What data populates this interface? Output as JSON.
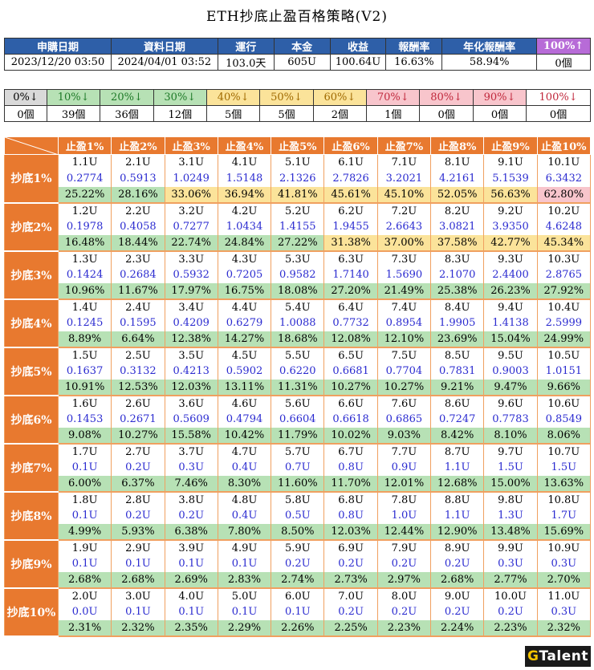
{
  "title": "ETH抄底止盈百格策略(V2)",
  "summary": {
    "headers": [
      "申購日期",
      "資料日期",
      "運行",
      "本金",
      "收益",
      "報酬率",
      "年化報酬率",
      "100%↑"
    ],
    "values": [
      "2023/12/20 03:50",
      "2024/04/01 03:52",
      "103.0天",
      "605U",
      "100.64U",
      "16.63%",
      "58.94%",
      "0個"
    ]
  },
  "distribution": {
    "labels": [
      "0%↓",
      "10%↓",
      "20%↓",
      "30%↓",
      "40%↓",
      "50%↓",
      "60%↓",
      "70%↓",
      "80%↓",
      "90%↓",
      "100%↓"
    ],
    "counts": [
      "0個",
      "39個",
      "36個",
      "12個",
      "5個",
      "5個",
      "2個",
      "1個",
      "0個",
      "0個",
      "0個"
    ],
    "colors": [
      "grey",
      "green",
      "green",
      "green",
      "yellow",
      "yellow",
      "yellow",
      "pink",
      "pink",
      "pink",
      "white"
    ]
  },
  "grid": {
    "col_headers": [
      "止盈1%",
      "止盈2%",
      "止盈3%",
      "止盈4%",
      "止盈5%",
      "止盈6%",
      "止盈7%",
      "止盈8%",
      "止盈9%",
      "止盈10%"
    ],
    "rows": [
      {
        "label": "抄底1%",
        "amounts": [
          "1.1U",
          "2.1U",
          "3.1U",
          "4.1U",
          "5.1U",
          "6.1U",
          "7.1U",
          "8.1U",
          "9.1U",
          "10.1U"
        ],
        "profits": [
          "0.2774",
          "0.5913",
          "1.0249",
          "1.5148",
          "2.1326",
          "2.7826",
          "3.2021",
          "4.2161",
          "5.1539",
          "6.3432"
        ],
        "returns": [
          "25.22%",
          "28.16%",
          "33.06%",
          "36.94%",
          "41.81%",
          "45.61%",
          "45.10%",
          "52.05%",
          "56.63%",
          "62.80%"
        ]
      },
      {
        "label": "抄底2%",
        "amounts": [
          "1.2U",
          "2.2U",
          "3.2U",
          "4.2U",
          "5.2U",
          "6.2U",
          "7.2U",
          "8.2U",
          "9.2U",
          "10.2U"
        ],
        "profits": [
          "0.1978",
          "0.4058",
          "0.7277",
          "1.0434",
          "1.4155",
          "1.9455",
          "2.6643",
          "3.0821",
          "3.9350",
          "4.6248"
        ],
        "returns": [
          "16.48%",
          "18.44%",
          "22.74%",
          "24.84%",
          "27.22%",
          "31.38%",
          "37.00%",
          "37.58%",
          "42.77%",
          "45.34%"
        ]
      },
      {
        "label": "抄底3%",
        "amounts": [
          "1.3U",
          "2.3U",
          "3.3U",
          "4.3U",
          "5.3U",
          "6.3U",
          "7.3U",
          "8.3U",
          "9.3U",
          "10.3U"
        ],
        "profits": [
          "0.1424",
          "0.2684",
          "0.5932",
          "0.7205",
          "0.9582",
          "1.7140",
          "1.5690",
          "2.1070",
          "2.4400",
          "2.8765"
        ],
        "returns": [
          "10.96%",
          "11.67%",
          "17.97%",
          "16.75%",
          "18.08%",
          "27.20%",
          "21.49%",
          "25.38%",
          "26.23%",
          "27.92%"
        ]
      },
      {
        "label": "抄底4%",
        "amounts": [
          "1.4U",
          "2.4U",
          "3.4U",
          "4.4U",
          "5.4U",
          "6.4U",
          "7.4U",
          "8.4U",
          "9.4U",
          "10.4U"
        ],
        "profits": [
          "0.1245",
          "0.1595",
          "0.4209",
          "0.6279",
          "1.0088",
          "0.7732",
          "0.8954",
          "1.9905",
          "1.4138",
          "2.5999"
        ],
        "returns": [
          "8.89%",
          "6.64%",
          "12.38%",
          "14.27%",
          "18.68%",
          "12.08%",
          "12.10%",
          "23.69%",
          "15.04%",
          "24.99%"
        ]
      },
      {
        "label": "抄底5%",
        "amounts": [
          "1.5U",
          "2.5U",
          "3.5U",
          "4.5U",
          "5.5U",
          "6.5U",
          "7.5U",
          "8.5U",
          "9.5U",
          "10.5U"
        ],
        "profits": [
          "0.1637",
          "0.3132",
          "0.4213",
          "0.5902",
          "0.6220",
          "0.6681",
          "0.7704",
          "0.7831",
          "0.9003",
          "1.0151"
        ],
        "returns": [
          "10.91%",
          "12.53%",
          "12.03%",
          "13.11%",
          "11.31%",
          "10.27%",
          "10.27%",
          "9.21%",
          "9.47%",
          "9.66%"
        ]
      },
      {
        "label": "抄底6%",
        "amounts": [
          "1.6U",
          "2.6U",
          "3.6U",
          "4.6U",
          "5.6U",
          "6.6U",
          "7.6U",
          "8.6U",
          "9.6U",
          "10.6U"
        ],
        "profits": [
          "0.1453",
          "0.2671",
          "0.5609",
          "0.4794",
          "0.6604",
          "0.6618",
          "0.6865",
          "0.7247",
          "0.7783",
          "0.8549"
        ],
        "returns": [
          "9.08%",
          "10.27%",
          "15.58%",
          "10.42%",
          "11.79%",
          "10.02%",
          "9.03%",
          "8.42%",
          "8.10%",
          "8.06%"
        ]
      },
      {
        "label": "抄底7%",
        "amounts": [
          "1.7U",
          "2.7U",
          "3.7U",
          "4.7U",
          "5.7U",
          "6.7U",
          "7.7U",
          "8.7U",
          "9.7U",
          "10.7U"
        ],
        "profits": [
          "0.1U",
          "0.2U",
          "0.3U",
          "0.4U",
          "0.7U",
          "0.8U",
          "0.9U",
          "1.1U",
          "1.5U",
          "1.5U"
        ],
        "returns": [
          "6.00%",
          "6.37%",
          "7.46%",
          "8.30%",
          "11.60%",
          "11.70%",
          "12.01%",
          "12.68%",
          "15.00%",
          "13.63%"
        ]
      },
      {
        "label": "抄底8%",
        "amounts": [
          "1.8U",
          "2.8U",
          "3.8U",
          "4.8U",
          "5.8U",
          "6.8U",
          "7.8U",
          "8.8U",
          "9.8U",
          "10.8U"
        ],
        "profits": [
          "0.1U",
          "0.2U",
          "0.2U",
          "0.4U",
          "0.5U",
          "0.8U",
          "1.0U",
          "1.1U",
          "1.3U",
          "1.7U"
        ],
        "returns": [
          "4.99%",
          "5.93%",
          "6.38%",
          "7.80%",
          "8.50%",
          "12.03%",
          "12.44%",
          "12.90%",
          "13.48%",
          "15.69%"
        ]
      },
      {
        "label": "抄底9%",
        "amounts": [
          "1.9U",
          "2.9U",
          "3.9U",
          "4.9U",
          "5.9U",
          "6.9U",
          "7.9U",
          "8.9U",
          "9.9U",
          "10.9U"
        ],
        "profits": [
          "0.1U",
          "0.1U",
          "0.1U",
          "0.1U",
          "0.2U",
          "0.2U",
          "0.2U",
          "0.2U",
          "0.3U",
          "0.3U"
        ],
        "returns": [
          "2.68%",
          "2.68%",
          "2.69%",
          "2.83%",
          "2.74%",
          "2.73%",
          "2.97%",
          "2.68%",
          "2.77%",
          "2.70%"
        ]
      },
      {
        "label": "抄底10%",
        "amounts": [
          "2.0U",
          "3.0U",
          "4.0U",
          "5.0U",
          "6.0U",
          "7.0U",
          "8.0U",
          "9.0U",
          "10.0U",
          "11.0U"
        ],
        "profits": [
          "0.0U",
          "0.1U",
          "0.1U",
          "0.1U",
          "0.1U",
          "0.2U",
          "0.2U",
          "0.2U",
          "0.2U",
          "0.3U"
        ],
        "returns": [
          "2.31%",
          "2.32%",
          "2.35%",
          "2.29%",
          "2.26%",
          "2.25%",
          "2.23%",
          "2.24%",
          "2.23%",
          "2.32%"
        ]
      }
    ]
  },
  "logo": {
    "g": "G",
    "rest": "Talent"
  }
}
